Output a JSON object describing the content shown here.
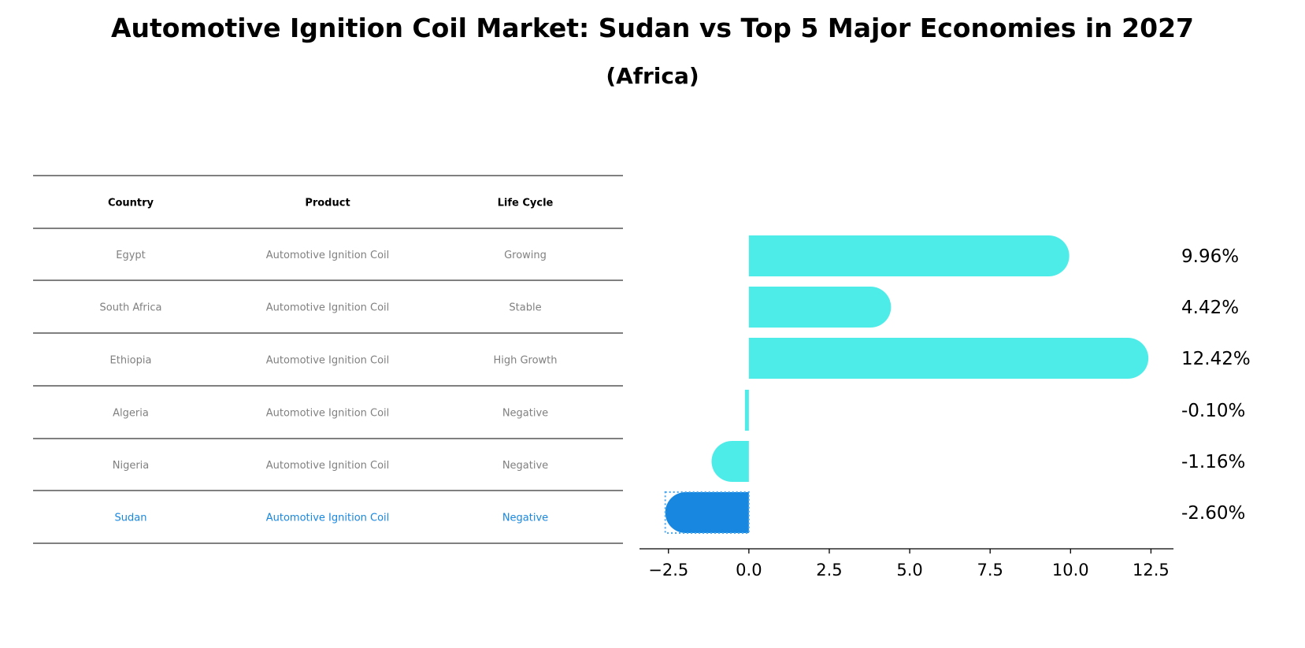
{
  "title": "Automotive Ignition Coil Market: Sudan vs Top 5 Major Economies in 2027",
  "subtitle": "(Africa)",
  "table": {
    "headers": [
      "Country",
      "Product",
      "Life Cycle"
    ],
    "rows": [
      [
        "Egypt",
        "Automotive Ignition Coil",
        "Growing"
      ],
      [
        "South Africa",
        "Automotive Ignition Coil",
        "Stable"
      ],
      [
        "Ethiopia",
        "Automotive Ignition Coil",
        "High Growth"
      ],
      [
        "Algeria",
        "Automotive Ignition Coil",
        "Negative"
      ],
      [
        "Nigeria",
        "Automotive Ignition Coil",
        "Negative"
      ],
      [
        "Sudan",
        "Automotive Ignition Coil",
        "Negative"
      ]
    ],
    "highlight_row": 5
  },
  "colors": {
    "bar": "#4eece9",
    "highlight": "#1887e0",
    "muted_text": "#808080"
  },
  "chart_data": {
    "type": "bar",
    "orientation": "horizontal",
    "categories": [
      "Egypt",
      "South Africa",
      "Ethiopia",
      "Algeria",
      "Nigeria",
      "Sudan"
    ],
    "values": [
      9.96,
      4.42,
      12.42,
      -0.1,
      -1.16,
      -2.6
    ],
    "labels": [
      "9.96%",
      "4.42%",
      "12.42%",
      "-0.10%",
      "-1.16%",
      "-2.60%"
    ],
    "highlight": "Sudan",
    "xlim": [
      -3.4,
      13.2
    ],
    "xticks": [
      -2.5,
      0.0,
      2.5,
      5.0,
      7.5,
      10.0,
      12.5
    ],
    "xtick_labels": [
      "−2.5",
      "0.0",
      "2.5",
      "5.0",
      "7.5",
      "10.0",
      "12.5"
    ]
  }
}
